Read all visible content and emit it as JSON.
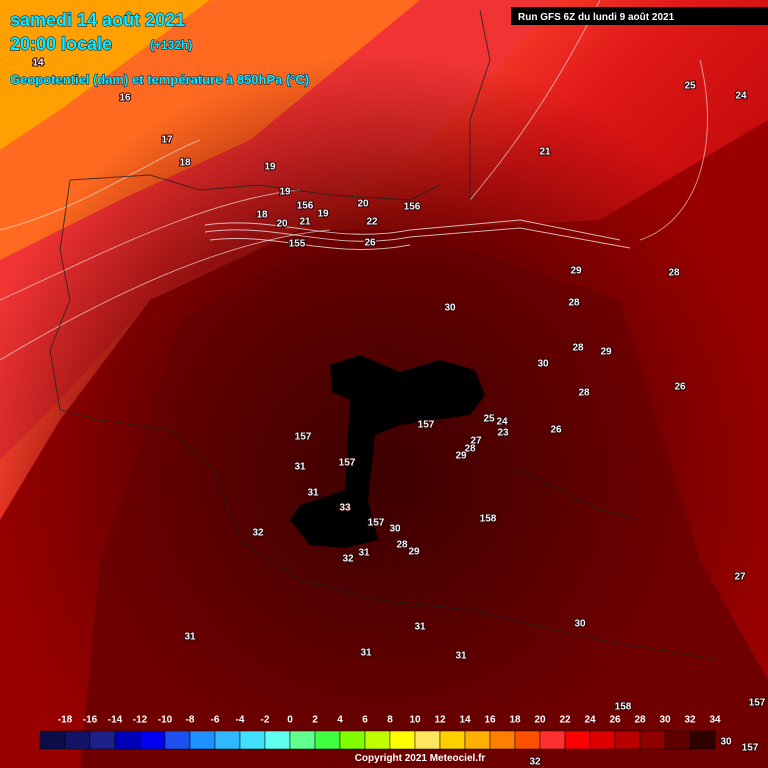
{
  "header": {
    "date": "samedi 14 août 2021",
    "time": "20:00 locale",
    "lead": "(+132h)",
    "subtitle": "Geopotentiel (dam) et température à 850hPa (°C)",
    "run": "Run GFS 6Z du lundi 9 août 2021"
  },
  "colorbar": {
    "labels": [
      -18,
      -16,
      -14,
      -12,
      -10,
      -8,
      -6,
      -4,
      -2,
      0,
      2,
      4,
      6,
      8,
      10,
      12,
      14,
      16,
      18,
      20,
      22,
      24,
      26,
      28,
      30,
      32,
      34
    ],
    "colors": [
      "#0c0c48",
      "#141466",
      "#1c2088",
      "#0000b8",
      "#0000f0",
      "#1e50f0",
      "#1e90ff",
      "#30b8ff",
      "#40e0ff",
      "#60fff0",
      "#60ff90",
      "#40ff40",
      "#80ff00",
      "#c0ff00",
      "#ffff00",
      "#ffe860",
      "#ffd000",
      "#ffb000",
      "#ff8000",
      "#ff5000",
      "#ff3030",
      "#ff0000",
      "#e00000",
      "#b80000",
      "#900000",
      "#600000",
      "#300000"
    ]
  },
  "map_labels": [
    14,
    16,
    17,
    18,
    19,
    19,
    156,
    19,
    20,
    18,
    20,
    21,
    22,
    156,
    155,
    26,
    21,
    25,
    24,
    29,
    28,
    28,
    30,
    28,
    29,
    30,
    28,
    26,
    157,
    157,
    26,
    25,
    24,
    23,
    27,
    28,
    29,
    157,
    31,
    31,
    33,
    158,
    157,
    30,
    32,
    28,
    29,
    31,
    32,
    27,
    31,
    31,
    30,
    31,
    31,
    158,
    157,
    30,
    157,
    32
  ],
  "footer": {
    "copyright": "Copyright 2021 Meteociel.fr"
  }
}
